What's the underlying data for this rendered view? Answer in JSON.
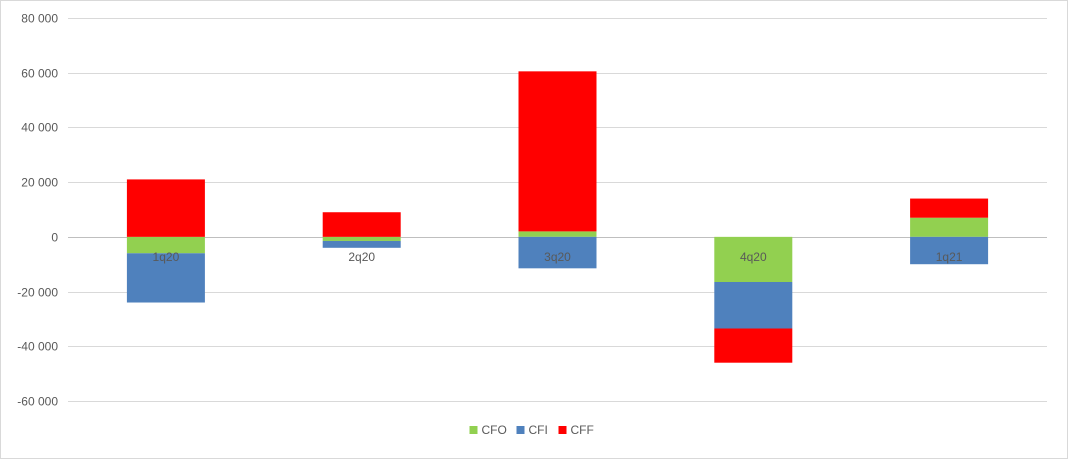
{
  "chart_data": {
    "type": "bar",
    "stacked": true,
    "title": "",
    "xlabel": "",
    "ylabel": "",
    "categories": [
      "1q20",
      "2q20",
      "3q20",
      "4q20",
      "1q21"
    ],
    "series": [
      {
        "name": "CFO",
        "color": "#92d050",
        "values": [
          -6000,
          -1500,
          2000,
          -16500,
          7000
        ]
      },
      {
        "name": "CFI",
        "color": "#4f81bd",
        "values": [
          -18000,
          -2500,
          -11500,
          -17000,
          -10000
        ]
      },
      {
        "name": "CFF",
        "color": "#ff0000",
        "values": [
          21000,
          9000,
          58500,
          -12500,
          7000
        ]
      }
    ],
    "ylim": [
      -60000,
      80000
    ],
    "yticks": [
      -60000,
      -40000,
      -20000,
      0,
      20000,
      40000,
      60000,
      80000
    ],
    "ytick_labels": [
      "-60 000",
      "-40 000",
      "-20 000",
      "0",
      "20 000",
      "40 000",
      "60 000",
      "80 000"
    ],
    "grid": true,
    "legend": "bottom-center",
    "category_labels_position": "axis"
  }
}
